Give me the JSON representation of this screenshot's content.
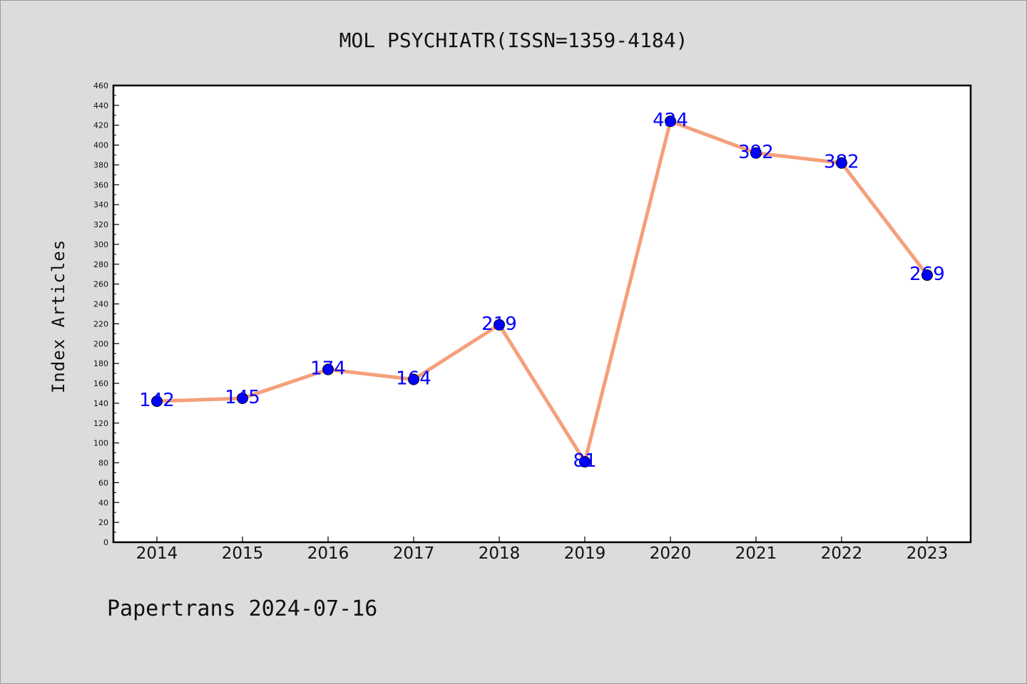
{
  "chart_data": {
    "type": "line",
    "title": "MOL PSYCHIATR(ISSN=1359-4184)",
    "ylabel": "Index Articles",
    "xlabel": "",
    "categories": [
      "2014",
      "2015",
      "2016",
      "2017",
      "2018",
      "2019",
      "2020",
      "2021",
      "2022",
      "2023"
    ],
    "values": [
      142,
      145,
      174,
      164,
      219,
      81,
      424,
      392,
      382,
      269
    ],
    "data_labels": [
      "142",
      "145",
      "174",
      "164",
      "219",
      "81",
      "424",
      "392",
      "382",
      "269"
    ],
    "ylim": [
      0,
      460
    ],
    "ytick_step": 20,
    "grid": false,
    "legend": "none",
    "line_color": "#f4a07c",
    "marker_color": "#0000ff",
    "label_color": "#0000ff"
  },
  "footer": "Papertrans 2024-07-16"
}
